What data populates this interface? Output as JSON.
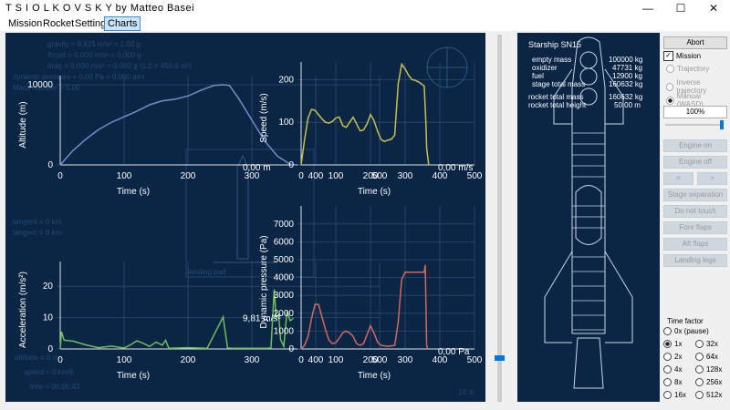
{
  "window": {
    "title": "T S I O L K O V S K Y   by Matteo Basei",
    "minimize": "—",
    "maximize": "☐",
    "close": "✕"
  },
  "menu": [
    "Mission",
    "Rocket",
    "Settings",
    "Charts"
  ],
  "menu_active": "Charts",
  "charts": [
    {
      "id": "altitude",
      "ylabel": "Altitude (m)",
      "xlabel": "Time (s)",
      "readout": "0,00 m",
      "color": "#6f8fc8",
      "x_ticks": [
        "0",
        "100",
        "200",
        "300",
        "400",
        "500"
      ],
      "y_ticks": [
        "0",
        "10000"
      ]
    },
    {
      "id": "speed",
      "ylabel": "Speed (m/s)",
      "xlabel": "Time (s)",
      "readout": "0,00 m/s",
      "color": "#c8c04e",
      "x_ticks": [
        "0",
        "100",
        "200",
        "300",
        "400",
        "500"
      ],
      "y_ticks": [
        "0",
        "100",
        "200"
      ]
    },
    {
      "id": "acceleration",
      "ylabel": "Acceleration (m/s²)",
      "xlabel": "Time (s)",
      "readout": "9,81 m/s²",
      "color": "#6fbf5a",
      "x_ticks": [
        "0",
        "100",
        "200",
        "300",
        "400",
        "500"
      ],
      "y_ticks": [
        "0",
        "10",
        "20"
      ]
    },
    {
      "id": "dynamic_pressure",
      "ylabel": "Dynamic pressure (Pa)",
      "xlabel": "Time (s)",
      "readout": "0,00 Pa",
      "color": "#d06a5e",
      "x_ticks": [
        "0",
        "100",
        "200",
        "300",
        "400",
        "500"
      ],
      "y_ticks": [
        "0",
        "1000",
        "2000",
        "3000",
        "4000",
        "5000",
        "6000",
        "7000"
      ]
    }
  ],
  "chart_data": [
    {
      "type": "line",
      "title": "",
      "xlabel": "Time (s)",
      "ylabel": "Altitude (m)",
      "xlim": [
        0,
        500
      ],
      "ylim": [
        0,
        10000
      ],
      "x": [
        0,
        20,
        40,
        60,
        80,
        100,
        120,
        140,
        160,
        180,
        200,
        220,
        240,
        255,
        265,
        280,
        300,
        320,
        340,
        360,
        370
      ],
      "y": [
        0,
        1800,
        3200,
        4400,
        5300,
        6000,
        6700,
        7500,
        8000,
        8200,
        8600,
        9300,
        9900,
        10000,
        9900,
        8200,
        5600,
        3000,
        1100,
        80,
        0
      ]
    },
    {
      "type": "line",
      "title": "",
      "xlabel": "Time (s)",
      "ylabel": "Speed (m/s)",
      "xlim": [
        0,
        500
      ],
      "ylim": [
        0,
        220
      ],
      "x": [
        0,
        10,
        20,
        30,
        40,
        50,
        60,
        70,
        80,
        90,
        100,
        110,
        120,
        130,
        140,
        150,
        160,
        170,
        180,
        190,
        200,
        210,
        220,
        230,
        240,
        250,
        260,
        270,
        280,
        290,
        300,
        310,
        320,
        330,
        340,
        350,
        355,
        360,
        362,
        365,
        368
      ],
      "y": [
        0,
        60,
        110,
        130,
        128,
        118,
        108,
        100,
        98,
        102,
        110,
        112,
        92,
        88,
        100,
        112,
        96,
        80,
        82,
        96,
        118,
        104,
        80,
        60,
        55,
        58,
        60,
        70,
        190,
        236,
        225,
        210,
        200,
        198,
        194,
        188,
        185,
        95,
        40,
        20,
        0
      ]
    },
    {
      "type": "line",
      "title": "",
      "xlabel": "Time (s)",
      "ylabel": "Acceleration (m/s²)",
      "xlim": [
        0,
        500
      ],
      "ylim": [
        0,
        25
      ],
      "x": [
        0,
        2,
        6,
        20,
        40,
        60,
        80,
        100,
        110,
        120,
        130,
        140,
        150,
        160,
        165,
        170,
        200,
        230,
        255,
        262,
        270,
        290,
        320,
        330,
        335,
        338,
        342,
        345,
        350,
        355,
        360,
        365
      ],
      "y": [
        0,
        5.5,
        2.8,
        2.5,
        1.3,
        0.4,
        0.9,
        0.3,
        1.3,
        2.6,
        1.8,
        0.8,
        2.2,
        1.2,
        2.8,
        0.2,
        0.4,
        0.2,
        10.2,
        0.3,
        0.2,
        0.2,
        0.2,
        0.3,
        19,
        10,
        11,
        3,
        0.8,
        12,
        9,
        9.8
      ]
    },
    {
      "type": "line",
      "title": "",
      "xlabel": "Time (s)",
      "ylabel": "Dynamic pressure (Pa)",
      "xlim": [
        0,
        500
      ],
      "ylim": [
        0,
        7500
      ],
      "x": [
        0,
        10,
        20,
        30,
        40,
        50,
        60,
        70,
        80,
        90,
        100,
        110,
        120,
        130,
        140,
        150,
        160,
        170,
        180,
        190,
        200,
        210,
        220,
        230,
        250,
        270,
        280,
        290,
        300,
        320,
        340,
        350,
        355,
        358,
        362,
        365
      ],
      "y": [
        0,
        200,
        700,
        1700,
        2500,
        2500,
        1800,
        1100,
        500,
        300,
        350,
        600,
        900,
        1000,
        900,
        700,
        300,
        200,
        300,
        800,
        1300,
        900,
        400,
        200,
        150,
        200,
        1500,
        3900,
        4300,
        4300,
        4300,
        4300,
        4300,
        4700,
        200,
        0
      ]
    }
  ],
  "ghost_text": {
    "grav1": "gravity = 9,815 m/s² = 1,00 g",
    "grav2": "thrust = 0,000 m/s² = 0,000 g",
    "grav3": "drag = 0,000 m/s² = 0,000 g (1,0 × 450,0 m²)",
    "grav4": "dynamic pressure = 0,00 Pa = 0,000 atm",
    "grav5": "Mach number = 0,00",
    "deg1": "tangent = 0 km",
    "deg2": "tangent = 0 km",
    "landing": "landing pad",
    "alt": "altitude = 0 m",
    "speed": "speed = 0 km/h",
    "time": "time = 00:06:43",
    "scale": "10 m"
  },
  "rocket": {
    "name": "Starship SN15",
    "rows": [
      {
        "label": "empty mass",
        "value": "100000 kg"
      },
      {
        "label": "oxidizer",
        "value": "47731 kg"
      },
      {
        "label": "fuel",
        "value": "12900 kg"
      },
      {
        "label": "stage total mass",
        "value": "160632 kg"
      }
    ],
    "rows2": [
      {
        "label": "rocket total mass",
        "value": "160632 kg"
      },
      {
        "label": "rocket total height",
        "value": "50,00 m"
      }
    ]
  },
  "controls": {
    "abort": "Abort",
    "mission_label": "Mission",
    "trajectory": "Trajectory",
    "inverse_trajectory": "Inverse trajectory",
    "manual": "Manual (WASD)",
    "throttle": "100%",
    "engine_on": "Engine on",
    "engine_off": "Engine off",
    "left": "<",
    "right": ">",
    "stage_separation": "Stage separation",
    "do_not_touch": "Do not touch",
    "fore_flaps": "Fore flaps",
    "aft_flaps": "Aft flaps",
    "landing_legs": "Landing legs",
    "time_factor": "Time factor",
    "factors": [
      "0x (pause)",
      "1x",
      "2x",
      "4x",
      "8x",
      "16x",
      "32x",
      "64x",
      "128x",
      "256x",
      "512x"
    ],
    "selected_factor": "1x"
  }
}
